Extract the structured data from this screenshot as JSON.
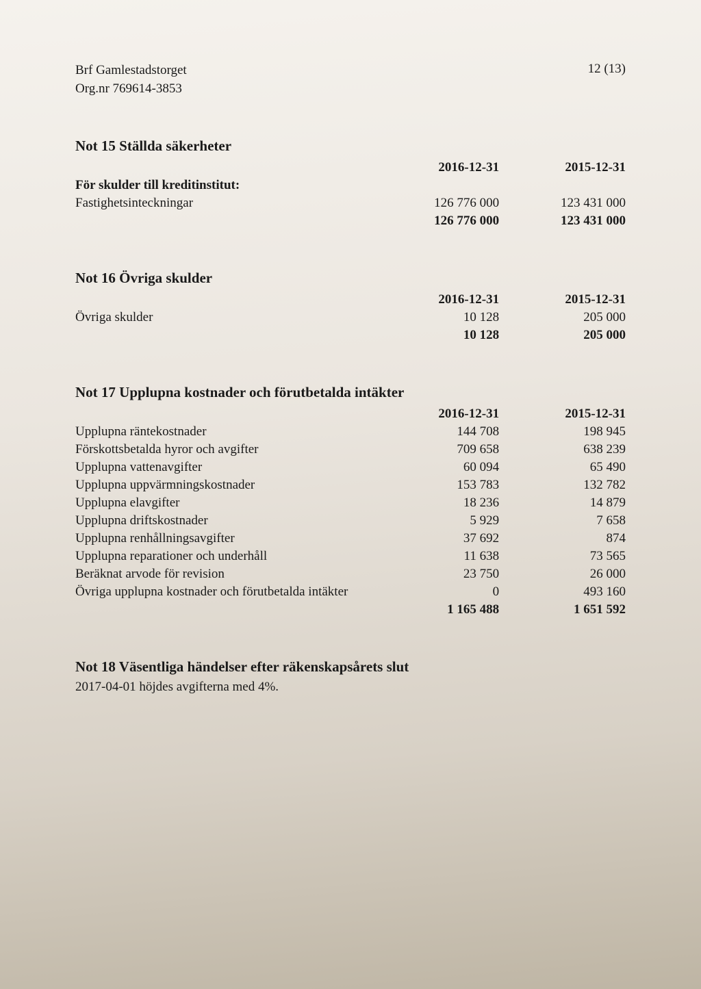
{
  "header": {
    "org_name": "Brf Gamlestadstorget",
    "org_nr": "Org.nr 769614-3853",
    "page_num": "12 (13)"
  },
  "note15": {
    "title": "Not 15 Ställda säkerheter",
    "col1": "2016-12-31",
    "col2": "2015-12-31",
    "subhead": "För skulder till kreditinstitut:",
    "rows": [
      {
        "label": "Fastighetsinteckningar",
        "v1": "126 776 000",
        "v2": "123 431 000"
      }
    ],
    "total": {
      "v1": "126 776 000",
      "v2": "123 431 000"
    }
  },
  "note16": {
    "title": "Not 16 Övriga skulder",
    "col1": "2016-12-31",
    "col2": "2015-12-31",
    "rows": [
      {
        "label": "Övriga skulder",
        "v1": "10 128",
        "v2": "205 000"
      }
    ],
    "total": {
      "v1": "10 128",
      "v2": "205 000"
    }
  },
  "note17": {
    "title": "Not 17 Upplupna kostnader och förutbetalda intäkter",
    "col1": "2016-12-31",
    "col2": "2015-12-31",
    "rows": [
      {
        "label": "Upplupna räntekostnader",
        "v1": "144 708",
        "v2": "198 945"
      },
      {
        "label": "Förskottsbetalda hyror och avgifter",
        "v1": "709 658",
        "v2": "638 239"
      },
      {
        "label": "Upplupna vattenavgifter",
        "v1": "60 094",
        "v2": "65 490"
      },
      {
        "label": "Upplupna uppvärmningskostnader",
        "v1": "153 783",
        "v2": "132 782"
      },
      {
        "label": "Upplupna elavgifter",
        "v1": "18 236",
        "v2": "14 879"
      },
      {
        "label": "Upplupna driftskostnader",
        "v1": "5 929",
        "v2": "7 658"
      },
      {
        "label": "Upplupna renhållningsavgifter",
        "v1": "37 692",
        "v2": "874"
      },
      {
        "label": "Upplupna reparationer och underhåll",
        "v1": "11 638",
        "v2": "73 565"
      },
      {
        "label": "Beräknat arvode för revision",
        "v1": "23 750",
        "v2": "26 000"
      },
      {
        "label": "Övriga upplupna kostnader och förutbetalda intäkter",
        "v1": "0",
        "v2": "493 160"
      }
    ],
    "total": {
      "v1": "1 165 488",
      "v2": "1 651 592"
    }
  },
  "note18": {
    "title": "Not 18 Väsentliga händelser efter räkenskapsårets slut",
    "body": "2017-04-01 höjdes avgifterna med 4%."
  }
}
